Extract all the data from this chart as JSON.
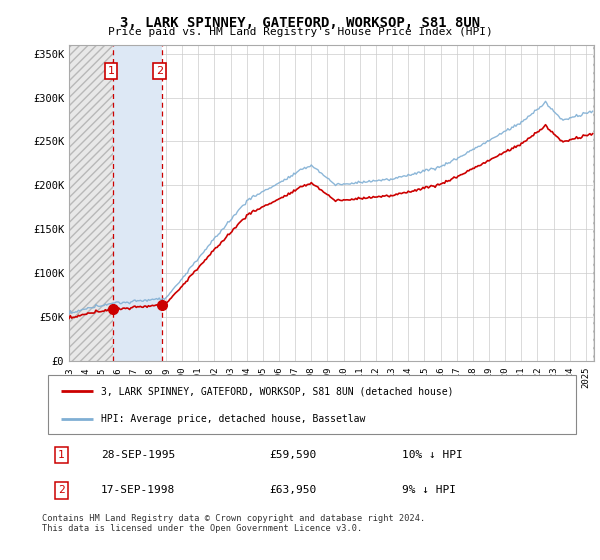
{
  "title": "3, LARK SPINNEY, GATEFORD, WORKSOP, S81 8UN",
  "subtitle": "Price paid vs. HM Land Registry's House Price Index (HPI)",
  "ylabel_ticks": [
    "£0",
    "£50K",
    "£100K",
    "£150K",
    "£200K",
    "£250K",
    "£300K",
    "£350K"
  ],
  "ytick_vals": [
    0,
    50000,
    100000,
    150000,
    200000,
    250000,
    300000,
    350000
  ],
  "ylim": [
    0,
    360000
  ],
  "xlim_start": 1993.0,
  "xlim_end": 2025.5,
  "sale1": {
    "date": 1995.75,
    "price": 59590,
    "label": "1",
    "pct": "10% ↓ HPI",
    "date_str": "28-SEP-1995",
    "price_str": "£59,590"
  },
  "sale2": {
    "date": 1998.75,
    "price": 63950,
    "label": "2",
    "pct": "9% ↓ HPI",
    "date_str": "17-SEP-1998",
    "price_str": "£63,950"
  },
  "legend_entry1": "3, LARK SPINNEY, GATEFORD, WORKSOP, S81 8UN (detached house)",
  "legend_entry2": "HPI: Average price, detached house, Bassetlaw",
  "footer": "Contains HM Land Registry data © Crown copyright and database right 2024.\nThis data is licensed under the Open Government Licence v3.0.",
  "sale_color": "#cc0000",
  "hpi_color": "#80afd4",
  "background_color": "#ffffff",
  "grid_color": "#cccccc",
  "hatch_fill": "#dde8f5",
  "hatch_outside": "#e8e8e8"
}
